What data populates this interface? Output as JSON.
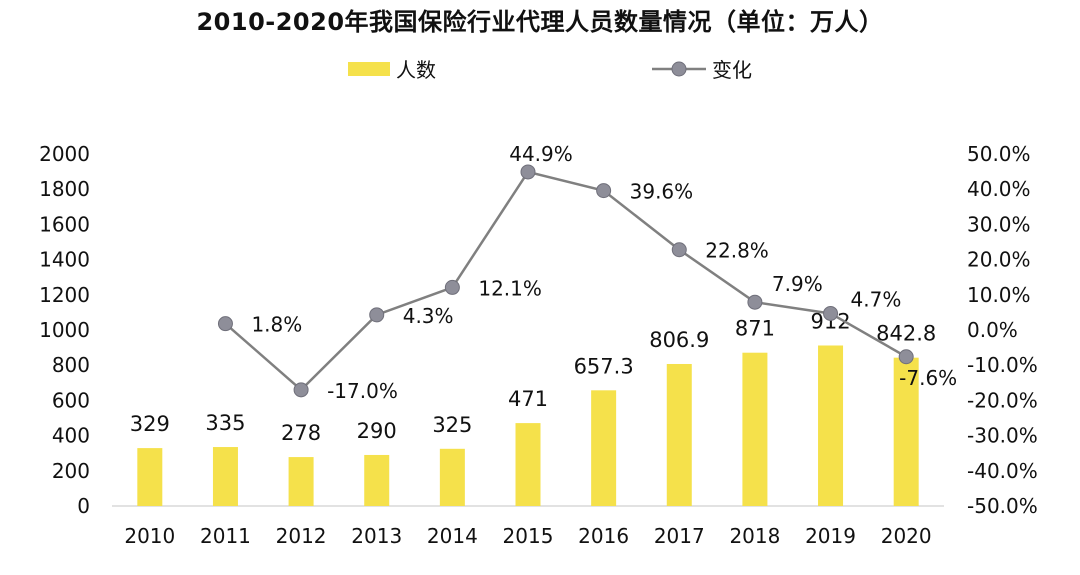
{
  "chart_data": {
    "type": "bar+line",
    "title": "2010-2020年我国保险行业代理人员数量情况（单位：万人）",
    "categories": [
      "2010",
      "2011",
      "2012",
      "2013",
      "2014",
      "2015",
      "2016",
      "2017",
      "2018",
      "2019",
      "2020"
    ],
    "series": [
      {
        "name": "人数",
        "type": "bar",
        "axis": "left",
        "color": "#F5E14B",
        "values": [
          329,
          335,
          278,
          290,
          325,
          471,
          657.3,
          806.9,
          871,
          912,
          842.8
        ],
        "labels": [
          "329",
          "335",
          "278",
          "290",
          "325",
          "471",
          "657.3",
          "806.9",
          "871",
          "912",
          "842.8"
        ]
      },
      {
        "name": "变化",
        "type": "line",
        "axis": "right",
        "color": "#8E8E99",
        "line_color": "#808080",
        "values": [
          null,
          1.8,
          -17.0,
          4.3,
          12.1,
          44.9,
          39.6,
          22.8,
          7.9,
          4.7,
          -7.6
        ],
        "labels": [
          "",
          "1.8%",
          "-17.0%",
          "4.3%",
          "12.1%",
          "44.9%",
          "39.6%",
          "22.8%",
          "7.9%",
          "4.7%",
          "-7.6%"
        ]
      }
    ],
    "y_left": {
      "min": 0,
      "max": 2000,
      "step": 200,
      "ticks": [
        "0",
        "200",
        "400",
        "600",
        "800",
        "1000",
        "1200",
        "1400",
        "1600",
        "1800",
        "2000"
      ]
    },
    "y_right": {
      "min": -50,
      "max": 50,
      "step": 10,
      "ticks": [
        "-50.0%",
        "-40.0%",
        "-30.0%",
        "-20.0%",
        "-10.0%",
        "0.0%",
        "10.0%",
        "20.0%",
        "30.0%",
        "40.0%",
        "50.0%"
      ]
    },
    "grid": false,
    "legend_position": "top-center"
  }
}
